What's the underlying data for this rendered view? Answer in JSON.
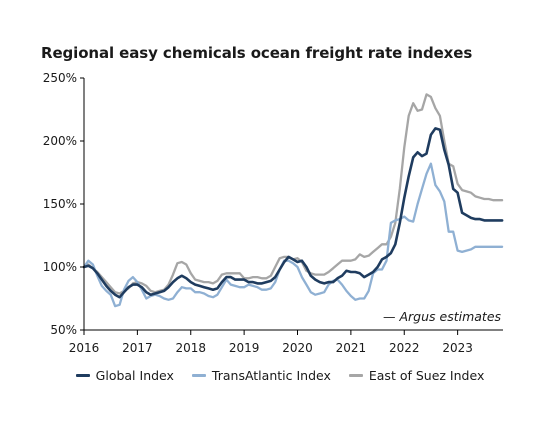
{
  "chart_data": {
    "type": "line",
    "title": "Regional easy chemicals ocean freight rate indexes",
    "xlabel": "",
    "ylabel": "",
    "x_ticks": [
      "2016",
      "2017",
      "2018",
      "2019",
      "2020",
      "2021",
      "2022",
      "2023"
    ],
    "y_ticks": [
      "50%",
      "100%",
      "150%",
      "200%",
      "250%"
    ],
    "xlim": [
      2016.0,
      2023.85
    ],
    "ylim": [
      50,
      250
    ],
    "grid": false,
    "legend_position": "bottom",
    "annotation": "— Argus estimates",
    "x": [
      2016.0,
      2016.083,
      2016.167,
      2016.25,
      2016.333,
      2016.417,
      2016.5,
      2016.583,
      2016.667,
      2016.75,
      2016.833,
      2016.917,
      2017.0,
      2017.083,
      2017.167,
      2017.25,
      2017.333,
      2017.417,
      2017.5,
      2017.583,
      2017.667,
      2017.75,
      2017.833,
      2017.917,
      2018.0,
      2018.083,
      2018.167,
      2018.25,
      2018.333,
      2018.417,
      2018.5,
      2018.583,
      2018.667,
      2018.75,
      2018.833,
      2018.917,
      2019.0,
      2019.083,
      2019.167,
      2019.25,
      2019.333,
      2019.417,
      2019.5,
      2019.583,
      2019.667,
      2019.75,
      2019.833,
      2019.917,
      2020.0,
      2020.083,
      2020.167,
      2020.25,
      2020.333,
      2020.417,
      2020.5,
      2020.583,
      2020.667,
      2020.75,
      2020.833,
      2020.917,
      2021.0,
      2021.083,
      2021.167,
      2021.25,
      2021.333,
      2021.417,
      2021.5,
      2021.583,
      2021.667,
      2021.75,
      2021.833,
      2021.917,
      2022.0,
      2022.083,
      2022.167,
      2022.25,
      2022.333,
      2022.417,
      2022.5,
      2022.583,
      2022.667,
      2022.75,
      2022.833,
      2022.917,
      2023.0,
      2023.083,
      2023.167,
      2023.25,
      2023.333,
      2023.417,
      2023.5,
      2023.583,
      2023.667,
      2023.75,
      2023.833
    ],
    "series": [
      {
        "name": "Global Index",
        "color": "#1f3c5f",
        "width": 2.6,
        "values": [
          100,
          101,
          99,
          95,
          90,
          85,
          81,
          78,
          76,
          80,
          84,
          86,
          86,
          84,
          80,
          78,
          79,
          80,
          81,
          84,
          88,
          91,
          93,
          91,
          88,
          86,
          85,
          84,
          83,
          82,
          83,
          88,
          92,
          92,
          90,
          90,
          90,
          88,
          88,
          87,
          87,
          88,
          89,
          92,
          98,
          104,
          108,
          106,
          104,
          105,
          100,
          93,
          90,
          88,
          87,
          88,
          88,
          91,
          93,
          97,
          96,
          96,
          95,
          92,
          94,
          96,
          100,
          106,
          108,
          111,
          118,
          135,
          155,
          172,
          187,
          191,
          188,
          190,
          205,
          210,
          209,
          193,
          181,
          162,
          159,
          143,
          141,
          139,
          138,
          138,
          137,
          137,
          137,
          137,
          137
        ]
      },
      {
        "name": "TransAtlantic Index",
        "color": "#8fb0d3",
        "width": 2.3,
        "values": [
          100,
          105,
          102,
          93,
          85,
          81,
          78,
          69,
          70,
          82,
          89,
          92,
          88,
          82,
          75,
          77,
          78,
          77,
          75,
          74,
          75,
          80,
          84,
          83,
          83,
          80,
          80,
          79,
          77,
          76,
          78,
          84,
          90,
          86,
          85,
          84,
          84,
          86,
          85,
          84,
          82,
          82,
          83,
          88,
          98,
          105,
          105,
          103,
          100,
          92,
          86,
          80,
          78,
          79,
          80,
          86,
          89,
          90,
          86,
          81,
          77,
          74,
          75,
          75,
          81,
          95,
          98,
          98,
          105,
          135,
          137,
          138,
          140,
          137,
          136,
          150,
          162,
          174,
          182,
          165,
          160,
          152,
          128,
          128,
          113,
          112,
          113,
          114,
          116,
          116,
          116,
          116,
          116,
          116,
          116
        ]
      },
      {
        "name": "East of Suez Index",
        "color": "#a6a6a6",
        "width": 2.3,
        "values": [
          100,
          102,
          99,
          96,
          92,
          88,
          84,
          80,
          79,
          81,
          83,
          87,
          88,
          87,
          85,
          81,
          80,
          81,
          82,
          86,
          94,
          103,
          104,
          102,
          95,
          90,
          89,
          88,
          88,
          87,
          89,
          94,
          95,
          95,
          95,
          95,
          91,
          91,
          92,
          92,
          91,
          91,
          93,
          100,
          107,
          108,
          108,
          106,
          107,
          104,
          97,
          95,
          94,
          94,
          94,
          96,
          99,
          102,
          105,
          105,
          105,
          106,
          110,
          108,
          109,
          112,
          115,
          118,
          118,
          124,
          135,
          162,
          195,
          220,
          230,
          224,
          225,
          237,
          235,
          226,
          220,
          200,
          182,
          180,
          166,
          161,
          160,
          159,
          156,
          155,
          154,
          154,
          153,
          153,
          153
        ]
      }
    ]
  }
}
